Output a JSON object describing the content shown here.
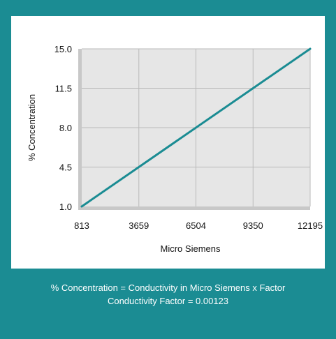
{
  "colors": {
    "frame": "#1b8c93",
    "panel": "#ffffff",
    "plot_bg": "#e6e6e6",
    "grid": "#b9b9b9",
    "line": "#1b8c93"
  },
  "chart_data": {
    "type": "line",
    "title": "",
    "xlabel": "Micro Siemens",
    "ylabel": "% Concentration",
    "x_ticks": [
      "813",
      "3659",
      "6504",
      "9350",
      "12195"
    ],
    "y_ticks": [
      "1.0",
      "4.5",
      "8.0",
      "11.5",
      "15.0"
    ],
    "xlim": [
      813,
      12195
    ],
    "ylim": [
      1.0,
      15.0
    ],
    "grid": true,
    "legend": "none",
    "series": [
      {
        "x": [
          813,
          12195
        ],
        "y": [
          1.0,
          15.0
        ]
      }
    ]
  },
  "footer": {
    "line1": "% Concentration = Conductivity in Micro Siemens x Factor",
    "line2": "Conductivity Factor = 0.00123"
  }
}
